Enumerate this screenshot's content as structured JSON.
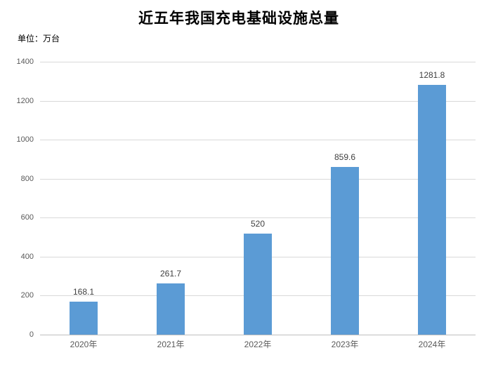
{
  "chart": {
    "title": "近五年我国充电基础设施总量",
    "unit_label": "单位：万台"
  },
  "chart_data": {
    "type": "bar",
    "title": "近五年我国充电基础设施总量",
    "subtitle_unit": "单位：万台",
    "categories": [
      "2020年",
      "2021年",
      "2022年",
      "2023年",
      "2024年"
    ],
    "values": [
      168.1,
      261.7,
      520,
      859.6,
      1281.8
    ],
    "data_labels": [
      "168.1",
      "261.7",
      "520",
      "859.6",
      "1281.8"
    ],
    "xlabel": "",
    "ylabel": "万台",
    "ylim": [
      0,
      1400
    ],
    "ytick_step": 200,
    "ytick_labels": [
      "0",
      "200",
      "400",
      "600",
      "800",
      "1000",
      "1200",
      "1400"
    ],
    "grid": true,
    "legend": "none",
    "colors": {
      "bar_fill": "#5B9BD5",
      "gridline": "#D9D9D9",
      "axis_line": "#BFBFBF",
      "axis_label": "#595959",
      "data_label": "#404040",
      "title": "#000000",
      "background": "#FFFFFF"
    }
  }
}
